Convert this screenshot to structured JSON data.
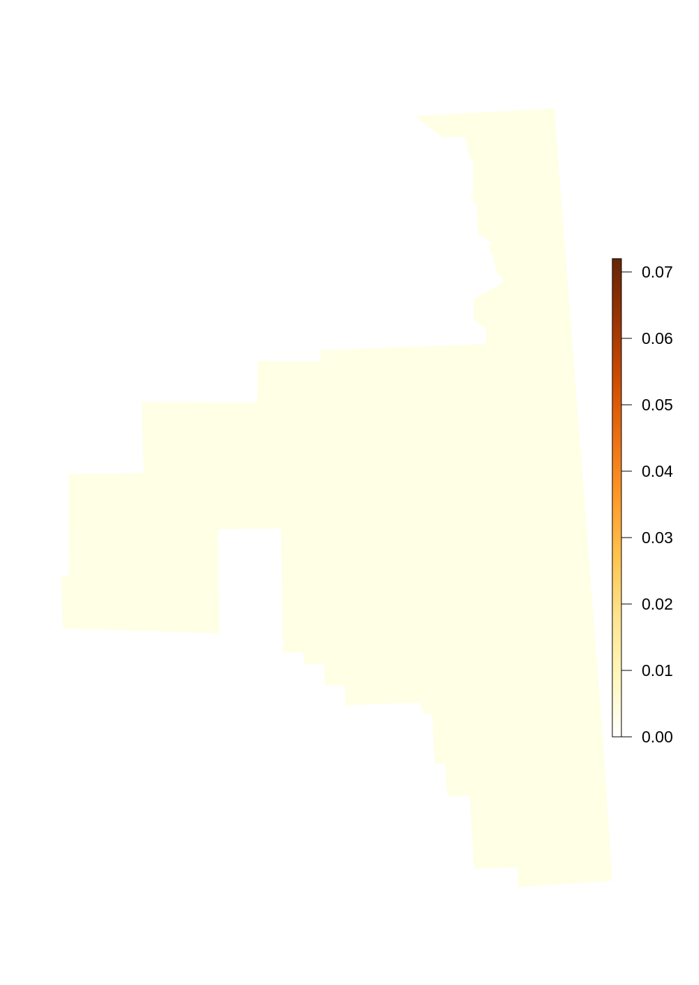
{
  "map": {
    "region_fill": "#ffffe6",
    "background": "#ffffff"
  },
  "legend": {
    "type": "continuous-colorbar",
    "range": [
      0.0,
      0.072
    ],
    "ticks": [
      {
        "value": 0.0,
        "label": "0.00"
      },
      {
        "value": 0.01,
        "label": "0.01"
      },
      {
        "value": 0.02,
        "label": "0.02"
      },
      {
        "value": 0.03,
        "label": "0.03"
      },
      {
        "value": 0.04,
        "label": "0.04"
      },
      {
        "value": 0.05,
        "label": "0.05"
      },
      {
        "value": 0.06,
        "label": "0.06"
      },
      {
        "value": 0.07,
        "label": "0.07"
      }
    ],
    "colors": [
      "#ffffff",
      "#fff7bc",
      "#fee391",
      "#fec44f",
      "#fe9929",
      "#ec7014",
      "#cc4c02",
      "#993404",
      "#662506"
    ]
  }
}
